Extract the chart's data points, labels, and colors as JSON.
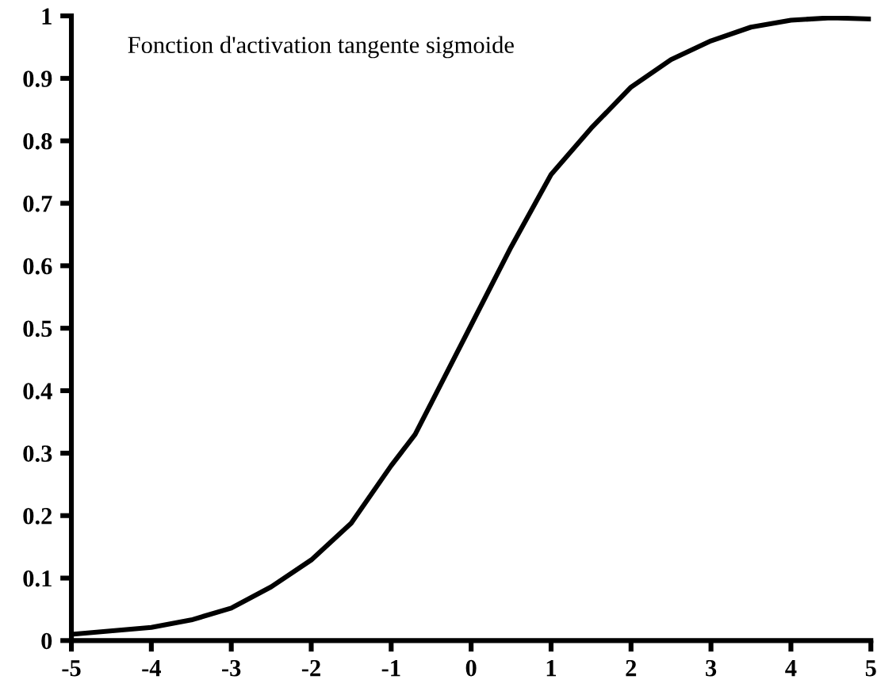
{
  "chart_data": {
    "type": "line",
    "title": "Fonction d'activation tangente sigmoide",
    "x": [
      -5,
      -4,
      -3.5,
      -3,
      -2.5,
      -2,
      -1.5,
      -1,
      -0.7,
      -0.5,
      0,
      0.5,
      1,
      1.5,
      2,
      2.5,
      3,
      3.5,
      4,
      4.5,
      5
    ],
    "series": [
      {
        "color": "#000000",
        "values": [
          0.01,
          0.021,
          0.033,
          0.052,
          0.086,
          0.129,
          0.188,
          0.28,
          0.33,
          0.38,
          0.505,
          0.63,
          0.746,
          0.82,
          0.886,
          0.93,
          0.96,
          0.982,
          0.993,
          0.997,
          0.995
        ]
      }
    ],
    "xlim": [
      -5,
      5
    ],
    "xticks": [
      -5,
      -4,
      -3,
      -2,
      -1,
      0,
      1,
      2,
      3,
      4,
      5
    ],
    "ylim": [
      0,
      1
    ],
    "yticks": [
      0,
      0.1,
      0.2,
      0.3,
      0.4,
      0.5,
      0.6,
      0.7,
      0.8,
      0.9,
      1
    ],
    "grid": false,
    "legend": false,
    "marker": "none",
    "line_style": "solid"
  }
}
